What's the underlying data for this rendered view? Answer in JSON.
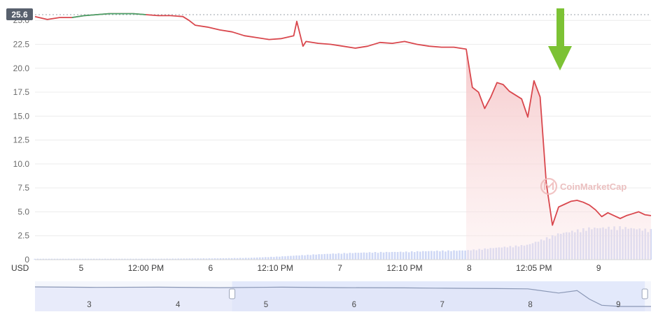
{
  "chart_data": {
    "type": "area",
    "currency_label": "USD",
    "current_price_badge": "25.6",
    "y_ticks": [
      "0",
      "2.5",
      "5.0",
      "7.5",
      "10.0",
      "12.5",
      "15.0",
      "17.5",
      "20.0",
      "22.5",
      "25.0"
    ],
    "ylim": [
      0,
      25.6
    ],
    "x_ticks": [
      "5",
      "12:00 PM",
      "6",
      "12:10 PM",
      "7",
      "12:10 PM",
      "8",
      "12:05 PM",
      "9"
    ],
    "navigator_ticks": [
      "3",
      "4",
      "5",
      "6",
      "7",
      "8",
      "9"
    ],
    "watermark": "CoinMarketCap",
    "annotation": "green-arrow",
    "colors": {
      "down_line": "#d9474d",
      "up_line": "#4aa46b",
      "area_top": "#f5c6c8",
      "volume": "#cfd8f5",
      "navigator_bg": "#e3e9fb",
      "arrow": "#7cc234"
    },
    "series": [
      {
        "x": [
          0,
          0.02,
          0.04,
          0.06,
          0.08,
          0.1,
          0.12,
          0.14,
          0.16,
          0.18,
          0.2,
          0.22,
          0.24,
          0.25,
          0.26,
          0.28,
          0.3,
          0.32,
          0.34,
          0.36,
          0.38,
          0.4,
          0.42,
          0.425,
          0.43,
          0.435,
          0.44,
          0.46,
          0.48,
          0.5,
          0.52,
          0.54,
          0.56,
          0.58,
          0.6,
          0.62,
          0.64,
          0.66,
          0.68,
          0.7,
          0.71,
          0.72,
          0.73,
          0.74,
          0.75,
          0.76,
          0.77,
          0.78,
          0.79,
          0.8,
          0.81,
          0.82,
          0.83,
          0.84,
          0.85,
          0.86,
          0.87,
          0.88,
          0.89,
          0.9,
          0.91,
          0.92,
          0.93,
          0.94,
          0.95,
          0.96,
          0.97,
          0.98,
          0.99,
          1.0
        ],
        "values": [
          25.4,
          25.1,
          25.3,
          25.3,
          25.5,
          25.6,
          25.7,
          25.7,
          25.7,
          25.6,
          25.5,
          25.5,
          25.4,
          25.0,
          24.5,
          24.3,
          24.0,
          23.8,
          23.4,
          23.2,
          23.0,
          23.1,
          23.4,
          24.9,
          23.6,
          22.3,
          22.8,
          22.6,
          22.5,
          22.3,
          22.1,
          22.3,
          22.7,
          22.6,
          22.8,
          22.5,
          22.3,
          22.2,
          22.2,
          22.0,
          18.0,
          17.5,
          15.8,
          17.0,
          18.5,
          18.3,
          17.6,
          17.2,
          16.8,
          14.9,
          18.7,
          17.0,
          8.0,
          3.6,
          5.5,
          5.8,
          6.1,
          6.2,
          6.0,
          5.7,
          5.2,
          4.5,
          4.9,
          4.6,
          4.3,
          4.6,
          4.8,
          5.0,
          4.7,
          4.6
        ]
      }
    ],
    "volume": {
      "x": [
        0,
        0.1,
        0.2,
        0.3,
        0.35,
        0.4,
        0.45,
        0.5,
        0.55,
        0.6,
        0.65,
        0.7,
        0.75,
        0.8,
        0.85,
        0.9,
        0.95,
        1.0
      ],
      "values": [
        0.1,
        0.1,
        0.1,
        0.15,
        0.2,
        0.35,
        0.55,
        0.7,
        0.8,
        0.85,
        0.95,
        1.0,
        1.3,
        1.6,
        2.8,
        3.4,
        3.5,
        3.2
      ]
    },
    "navigator": {
      "x": [
        0,
        0.1,
        0.2,
        0.3,
        0.4,
        0.5,
        0.6,
        0.65,
        0.7,
        0.75,
        0.8,
        0.85,
        0.88,
        0.9,
        0.92,
        0.95,
        1.0
      ],
      "values": [
        1.0,
        0.98,
        0.99,
        0.97,
        0.99,
        0.97,
        0.96,
        0.95,
        0.94,
        0.93,
        0.92,
        0.75,
        0.85,
        0.5,
        0.25,
        0.2,
        0.2
      ],
      "window": [
        0.32,
        0.99
      ]
    }
  }
}
